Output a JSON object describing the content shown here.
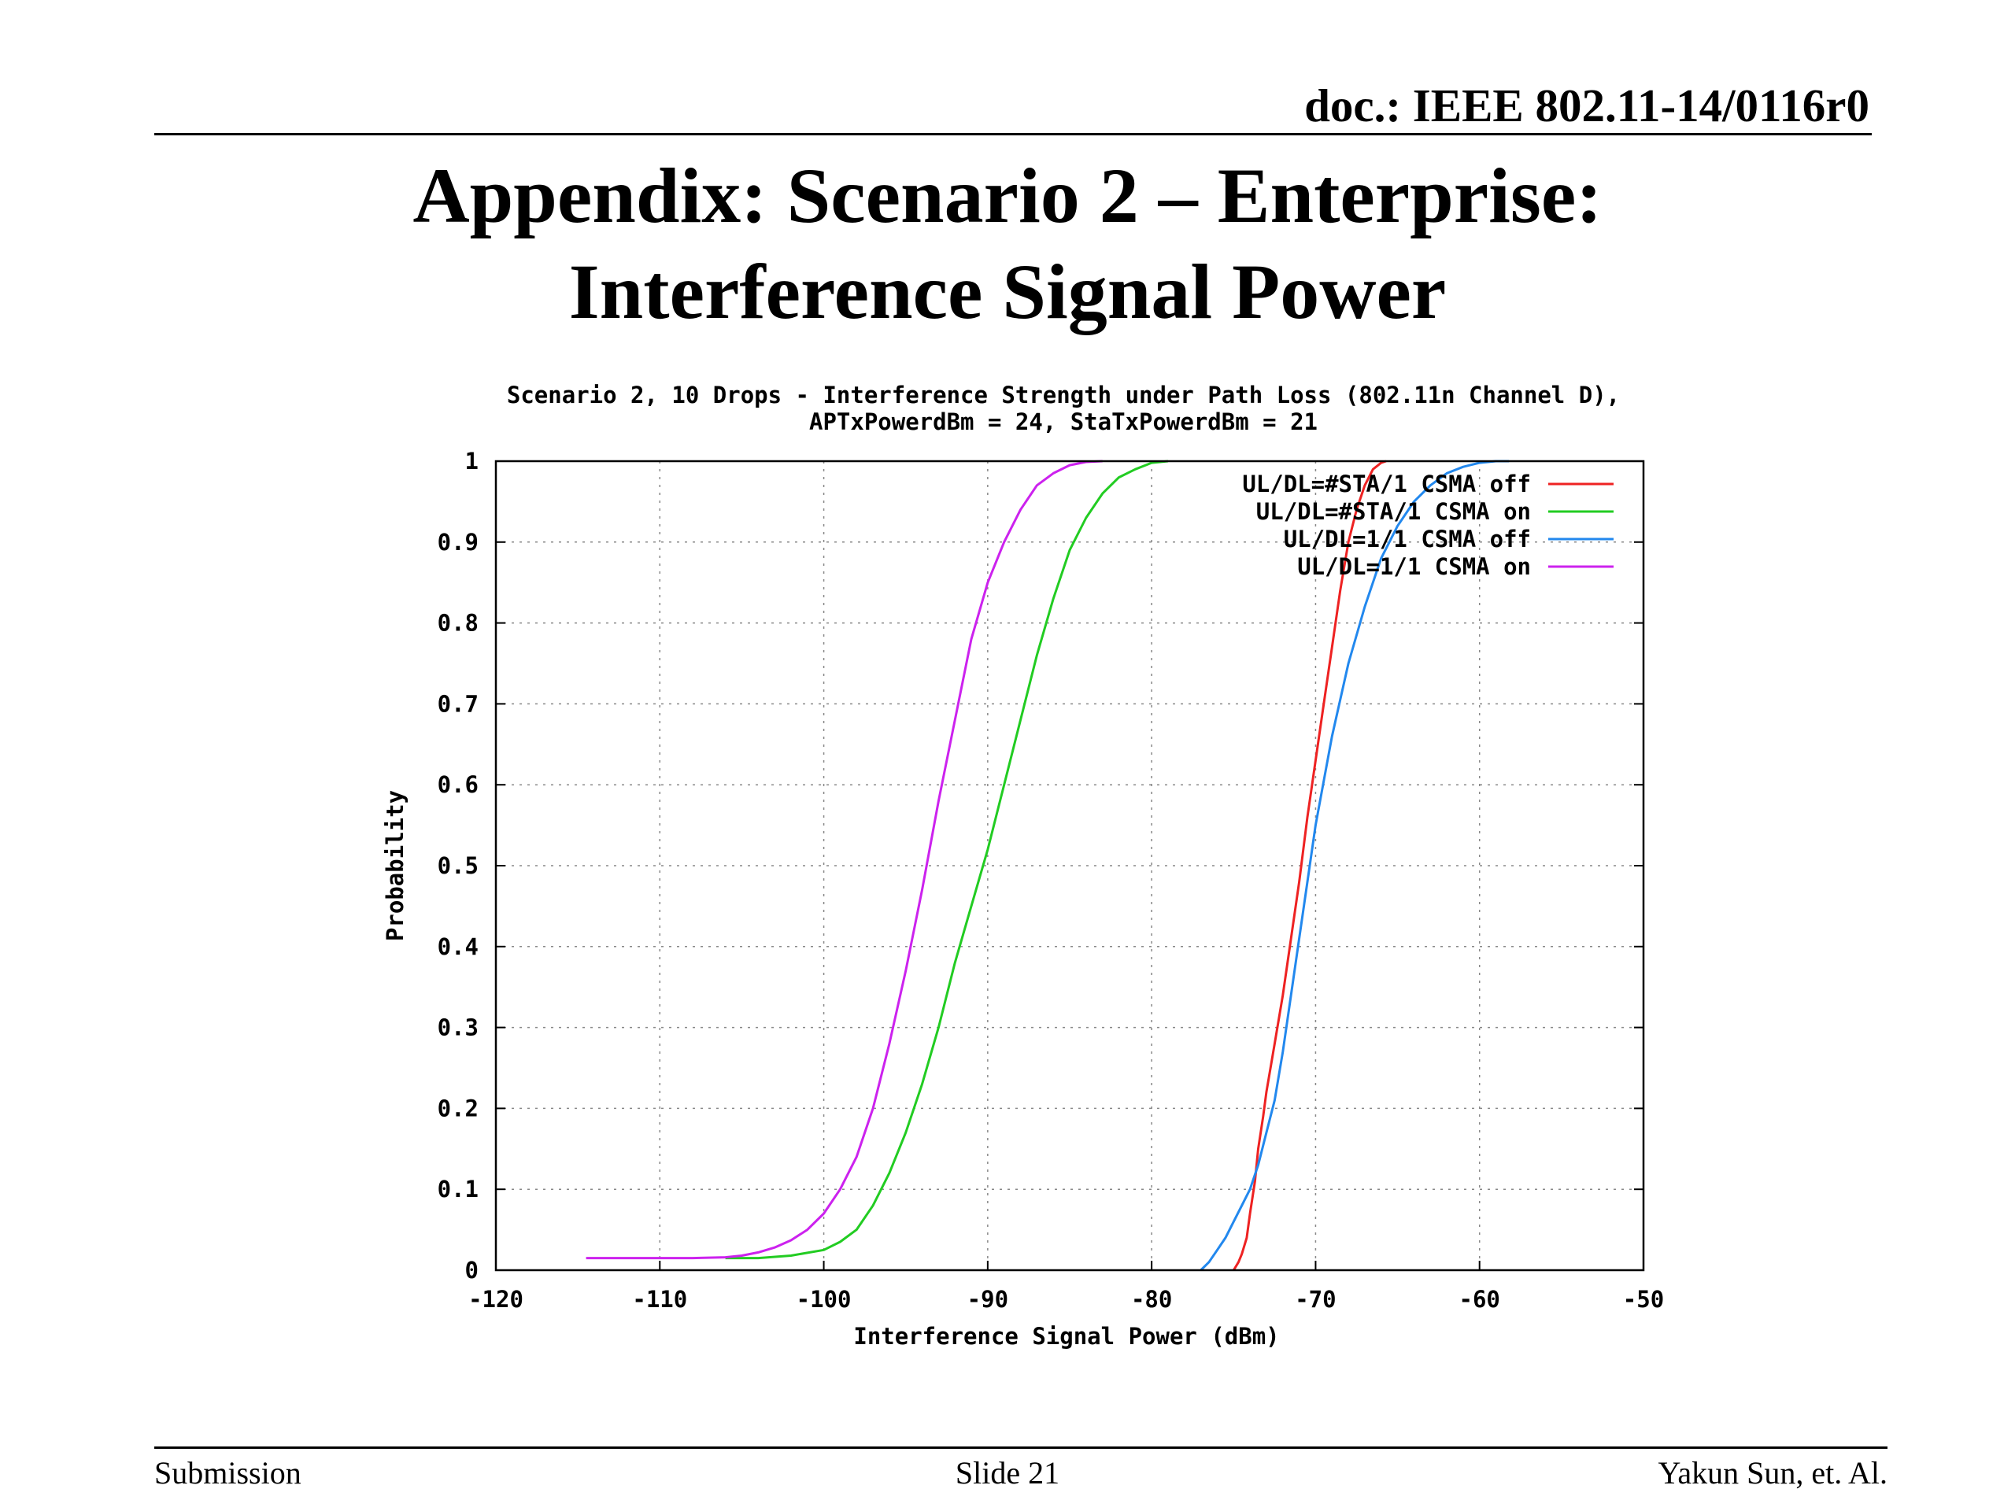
{
  "header": {
    "doc_id": "doc.: IEEE 802.11-14/0116r0"
  },
  "slide": {
    "title_line1": "Appendix: Scenario 2 – Enterprise:",
    "title_line2": "Interference Signal Power"
  },
  "footer": {
    "left": "Submission",
    "center": "Slide 21",
    "right": "Yakun Sun, et. Al."
  },
  "colors": {
    "red": "#ee2222",
    "green": "#22cc22",
    "blue": "#2288ee",
    "purple": "#cc22ee"
  },
  "chart_data": {
    "type": "line",
    "title_line1": "Scenario 2, 10 Drops - Interference Strength under Path Loss (802.11n Channel D),",
    "title_line2": "APTxPowerdBm = 24, StaTxPowerdBm = 21",
    "xlabel": "Interference Signal Power (dBm)",
    "ylabel": "Probability",
    "xlim": [
      -120,
      -50
    ],
    "ylim": [
      0,
      1
    ],
    "xticks": [
      -120,
      -110,
      -100,
      -90,
      -80,
      -70,
      -60,
      -50
    ],
    "xtick_labels": [
      "-120",
      "-110",
      "-100",
      "-90",
      "-80",
      "-70",
      "-60",
      "-50"
    ],
    "yticks": [
      0,
      0.1,
      0.2,
      0.3,
      0.4,
      0.5,
      0.6,
      0.7,
      0.8,
      0.9,
      1
    ],
    "ytick_labels": [
      "0",
      "0.1",
      "0.2",
      "0.3",
      "0.4",
      "0.5",
      "0.6",
      "0.7",
      "0.8",
      "0.9",
      "1"
    ],
    "grid": true,
    "legend_position": "top-right",
    "series": [
      {
        "name": "UL/DL=#STA/1 CSMA off",
        "color": "#ee2222",
        "x": [
          -75,
          -74.7,
          -74.5,
          -74.2,
          -74,
          -73.7,
          -73.5,
          -73.2,
          -73,
          -72.5,
          -72,
          -71.5,
          -71,
          -70.5,
          -70,
          -69.5,
          -69,
          -68.5,
          -68,
          -67.5,
          -67,
          -66.5,
          -66,
          -65.7
        ],
        "y": [
          0,
          0.01,
          0.02,
          0.04,
          0.07,
          0.11,
          0.15,
          0.19,
          0.22,
          0.28,
          0.34,
          0.41,
          0.48,
          0.56,
          0.63,
          0.7,
          0.77,
          0.84,
          0.9,
          0.94,
          0.97,
          0.99,
          0.998,
          1
        ]
      },
      {
        "name": "UL/DL=#STA/1 CSMA on",
        "color": "#22cc22",
        "x": [
          -106,
          -104,
          -102,
          -100,
          -99,
          -98,
          -97,
          -96,
          -95,
          -94,
          -93,
          -92,
          -91,
          -90,
          -89,
          -88,
          -87,
          -86,
          -85,
          -84,
          -83,
          -82,
          -81,
          -80,
          -79
        ],
        "y": [
          0.015,
          0.015,
          0.018,
          0.025,
          0.035,
          0.05,
          0.08,
          0.12,
          0.17,
          0.23,
          0.3,
          0.38,
          0.45,
          0.52,
          0.6,
          0.68,
          0.76,
          0.83,
          0.89,
          0.93,
          0.96,
          0.98,
          0.99,
          0.998,
          1
        ]
      },
      {
        "name": "UL/DL=1/1 CSMA off",
        "color": "#2288ee",
        "x": [
          -77,
          -76.5,
          -76,
          -75.5,
          -75,
          -74.5,
          -74,
          -73.5,
          -73,
          -72.5,
          -72,
          -71.5,
          -71,
          -70.5,
          -70,
          -69,
          -68,
          -67,
          -66,
          -65,
          -64,
          -63,
          -62,
          -61,
          -60,
          -59,
          -58.2
        ],
        "y": [
          0,
          0.01,
          0.025,
          0.04,
          0.06,
          0.08,
          0.1,
          0.13,
          0.17,
          0.21,
          0.27,
          0.34,
          0.41,
          0.48,
          0.55,
          0.66,
          0.75,
          0.82,
          0.88,
          0.92,
          0.95,
          0.97,
          0.985,
          0.993,
          0.998,
          1,
          1
        ]
      },
      {
        "name": "UL/DL=1/1 CSMA on",
        "color": "#cc22ee",
        "x": [
          -114.5,
          -112,
          -110,
          -108,
          -106,
          -105,
          -104,
          -103,
          -102,
          -101,
          -100,
          -99,
          -98,
          -97,
          -96,
          -95,
          -94,
          -93,
          -92,
          -91,
          -90,
          -89,
          -88,
          -87,
          -86,
          -85,
          -84,
          -83
        ],
        "y": [
          0.015,
          0.015,
          0.015,
          0.015,
          0.016,
          0.018,
          0.022,
          0.028,
          0.037,
          0.05,
          0.07,
          0.1,
          0.14,
          0.2,
          0.28,
          0.37,
          0.47,
          0.58,
          0.68,
          0.78,
          0.85,
          0.9,
          0.94,
          0.97,
          0.985,
          0.995,
          0.999,
          1
        ]
      }
    ]
  }
}
